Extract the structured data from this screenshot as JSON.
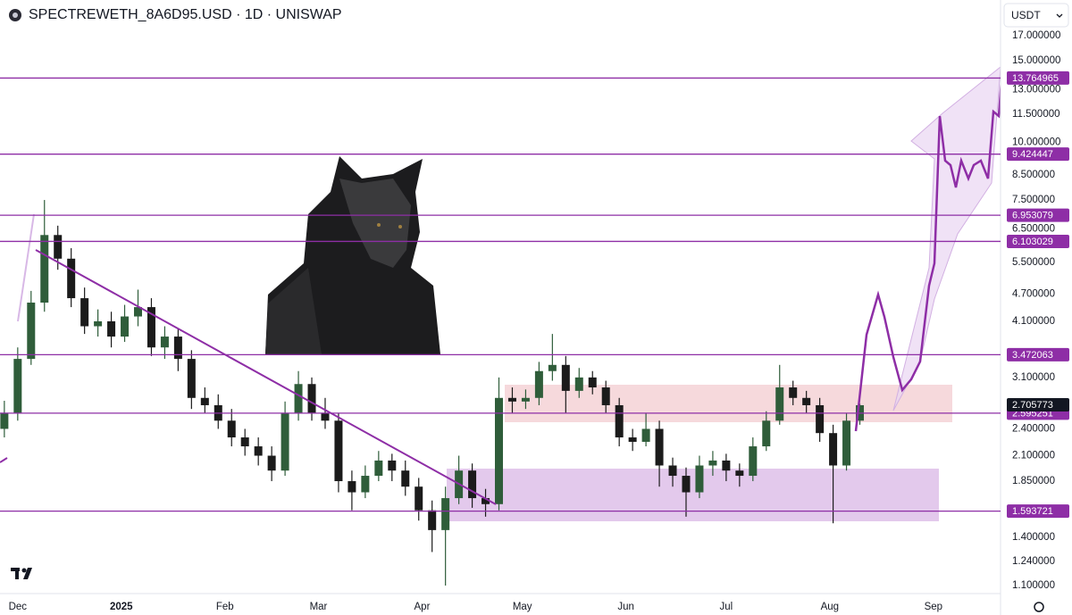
{
  "chart_data": {
    "type": "candlestick",
    "title": "SPECTREWETH_8A6D95.USD · 1D · UNISWAP",
    "currency": "USDT",
    "log_scale": true,
    "up_color": "#2f5d3a",
    "down_color": "#1b1b1b",
    "level_color": "#8e2ea6",
    "x": [
      -4,
      0,
      4,
      8,
      12,
      16,
      20,
      24,
      28,
      32,
      36,
      40,
      44,
      48,
      52,
      56,
      60,
      64,
      68,
      72,
      76,
      80,
      84,
      88,
      92,
      96,
      100,
      104,
      108,
      112,
      116,
      120,
      124,
      128,
      132,
      136,
      140,
      144,
      148,
      152,
      156,
      160,
      164,
      168,
      172,
      176,
      180,
      184,
      188,
      192,
      196,
      200,
      204,
      208,
      212,
      216,
      220,
      224,
      228,
      232,
      236,
      240,
      244,
      248,
      252
    ],
    "open": [
      2.4,
      2.6,
      3.4,
      4.5,
      6.3,
      5.6,
      4.6,
      4.0,
      4.1,
      3.8,
      4.2,
      4.4,
      3.6,
      3.8,
      3.4,
      2.8,
      2.7,
      2.5,
      2.3,
      2.2,
      2.1,
      1.95,
      2.6,
      3.0,
      2.6,
      2.5,
      1.85,
      1.75,
      1.9,
      2.05,
      1.95,
      1.8,
      1.6,
      1.45,
      1.7,
      1.95,
      1.7,
      1.65,
      2.8,
      2.75,
      2.8,
      3.2,
      3.3,
      2.9,
      3.1,
      2.95,
      2.7,
      2.3,
      2.25,
      2.4,
      2.0,
      1.9,
      1.75,
      2.0,
      2.05,
      1.95,
      1.9,
      2.2,
      2.5,
      2.95,
      2.8,
      2.7,
      2.35,
      2.0,
      2.5
    ],
    "high": [
      2.76,
      3.6,
      4.77,
      7.5,
      6.6,
      5.9,
      4.85,
      4.35,
      4.3,
      4.45,
      4.8,
      4.6,
      4.0,
      3.95,
      3.55,
      2.95,
      2.85,
      2.65,
      2.4,
      2.3,
      2.2,
      2.75,
      3.2,
      3.1,
      2.8,
      2.6,
      1.95,
      2.0,
      2.15,
      2.12,
      2.05,
      1.88,
      1.68,
      1.8,
      2.1,
      2.02,
      1.78,
      3.1,
      2.95,
      2.92,
      3.35,
      3.85,
      3.45,
      3.25,
      3.2,
      3.05,
      2.8,
      2.4,
      2.6,
      2.5,
      2.08,
      1.98,
      2.1,
      2.15,
      2.12,
      2.02,
      2.3,
      2.62,
      3.3,
      3.05,
      2.9,
      2.8,
      2.45,
      2.6,
      2.72
    ],
    "low": [
      2.3,
      2.5,
      3.3,
      4.3,
      5.3,
      4.4,
      3.85,
      3.8,
      3.6,
      3.7,
      4.0,
      3.45,
      3.4,
      3.2,
      2.65,
      2.6,
      2.4,
      2.2,
      2.1,
      2.0,
      1.85,
      1.9,
      2.5,
      2.5,
      2.4,
      1.75,
      1.6,
      1.7,
      1.85,
      1.85,
      1.72,
      1.52,
      1.3,
      1.1,
      1.65,
      1.62,
      1.55,
      1.6,
      2.6,
      2.65,
      2.7,
      3.05,
      2.6,
      2.8,
      2.85,
      2.6,
      2.2,
      2.15,
      2.2,
      1.8,
      1.8,
      1.55,
      1.7,
      1.9,
      1.85,
      1.8,
      1.85,
      2.15,
      2.45,
      2.7,
      2.6,
      2.25,
      1.5,
      1.95,
      2.45
    ],
    "close": [
      2.6,
      3.4,
      4.5,
      6.3,
      5.6,
      4.6,
      4.0,
      4.1,
      3.8,
      4.2,
      4.4,
      3.6,
      3.8,
      3.4,
      2.8,
      2.7,
      2.5,
      2.3,
      2.2,
      2.1,
      1.95,
      2.6,
      3.0,
      2.6,
      2.5,
      1.85,
      1.75,
      1.9,
      2.05,
      1.95,
      1.8,
      1.6,
      1.45,
      1.7,
      1.95,
      1.7,
      1.65,
      2.8,
      2.75,
      2.8,
      3.2,
      3.3,
      2.9,
      3.1,
      2.95,
      2.7,
      2.3,
      2.25,
      2.4,
      2.0,
      1.9,
      1.75,
      2.0,
      2.05,
      1.95,
      1.9,
      2.2,
      2.5,
      2.95,
      2.8,
      2.7,
      2.35,
      2.0,
      2.5,
      2.7
    ],
    "xlim": [
      -5.3,
      294.1
    ],
    "ylim": [
      1.057,
      20.3
    ],
    "xticks": [
      {
        "value": 0,
        "label": "Dec"
      },
      {
        "value": 31,
        "label": "2025"
      },
      {
        "value": 62,
        "label": "Feb"
      },
      {
        "value": 90,
        "label": "Mar"
      },
      {
        "value": 121,
        "label": "Apr"
      },
      {
        "value": 151,
        "label": "May"
      },
      {
        "value": 182,
        "label": "Jun"
      },
      {
        "value": 212,
        "label": "Jul"
      },
      {
        "value": 243,
        "label": "Aug"
      },
      {
        "value": 274,
        "label": "Sep"
      }
    ],
    "yticks": [
      {
        "value": 17,
        "label": "17.000000"
      },
      {
        "value": 15,
        "label": "15.000000"
      },
      {
        "value": 13,
        "label": "13.000000"
      },
      {
        "value": 11.5,
        "label": "11.500000"
      },
      {
        "value": 10,
        "label": "10.000000"
      },
      {
        "value": 8.5,
        "label": "8.500000"
      },
      {
        "value": 7.5,
        "label": "7.500000"
      },
      {
        "value": 6.5,
        "label": "6.500000"
      },
      {
        "value": 5.5,
        "label": "5.500000"
      },
      {
        "value": 4.7,
        "label": "4.700000"
      },
      {
        "value": 4.1,
        "label": "4.100000"
      },
      {
        "value": 3.1,
        "label": "3.100000"
      },
      {
        "value": 2.4,
        "label": "2.400000"
      },
      {
        "value": 2.1,
        "label": "2.100000"
      },
      {
        "value": 1.85,
        "label": "1.850000"
      },
      {
        "value": 1.4,
        "label": "1.400000"
      },
      {
        "value": 1.24,
        "label": "1.240000"
      },
      {
        "value": 1.1,
        "label": "1.100000"
      }
    ],
    "levels": [
      13.764965,
      9.424447,
      6.953079,
      6.103029,
      3.472063,
      2.595251,
      1.593721
    ],
    "last_price": 2.705773
  }
}
